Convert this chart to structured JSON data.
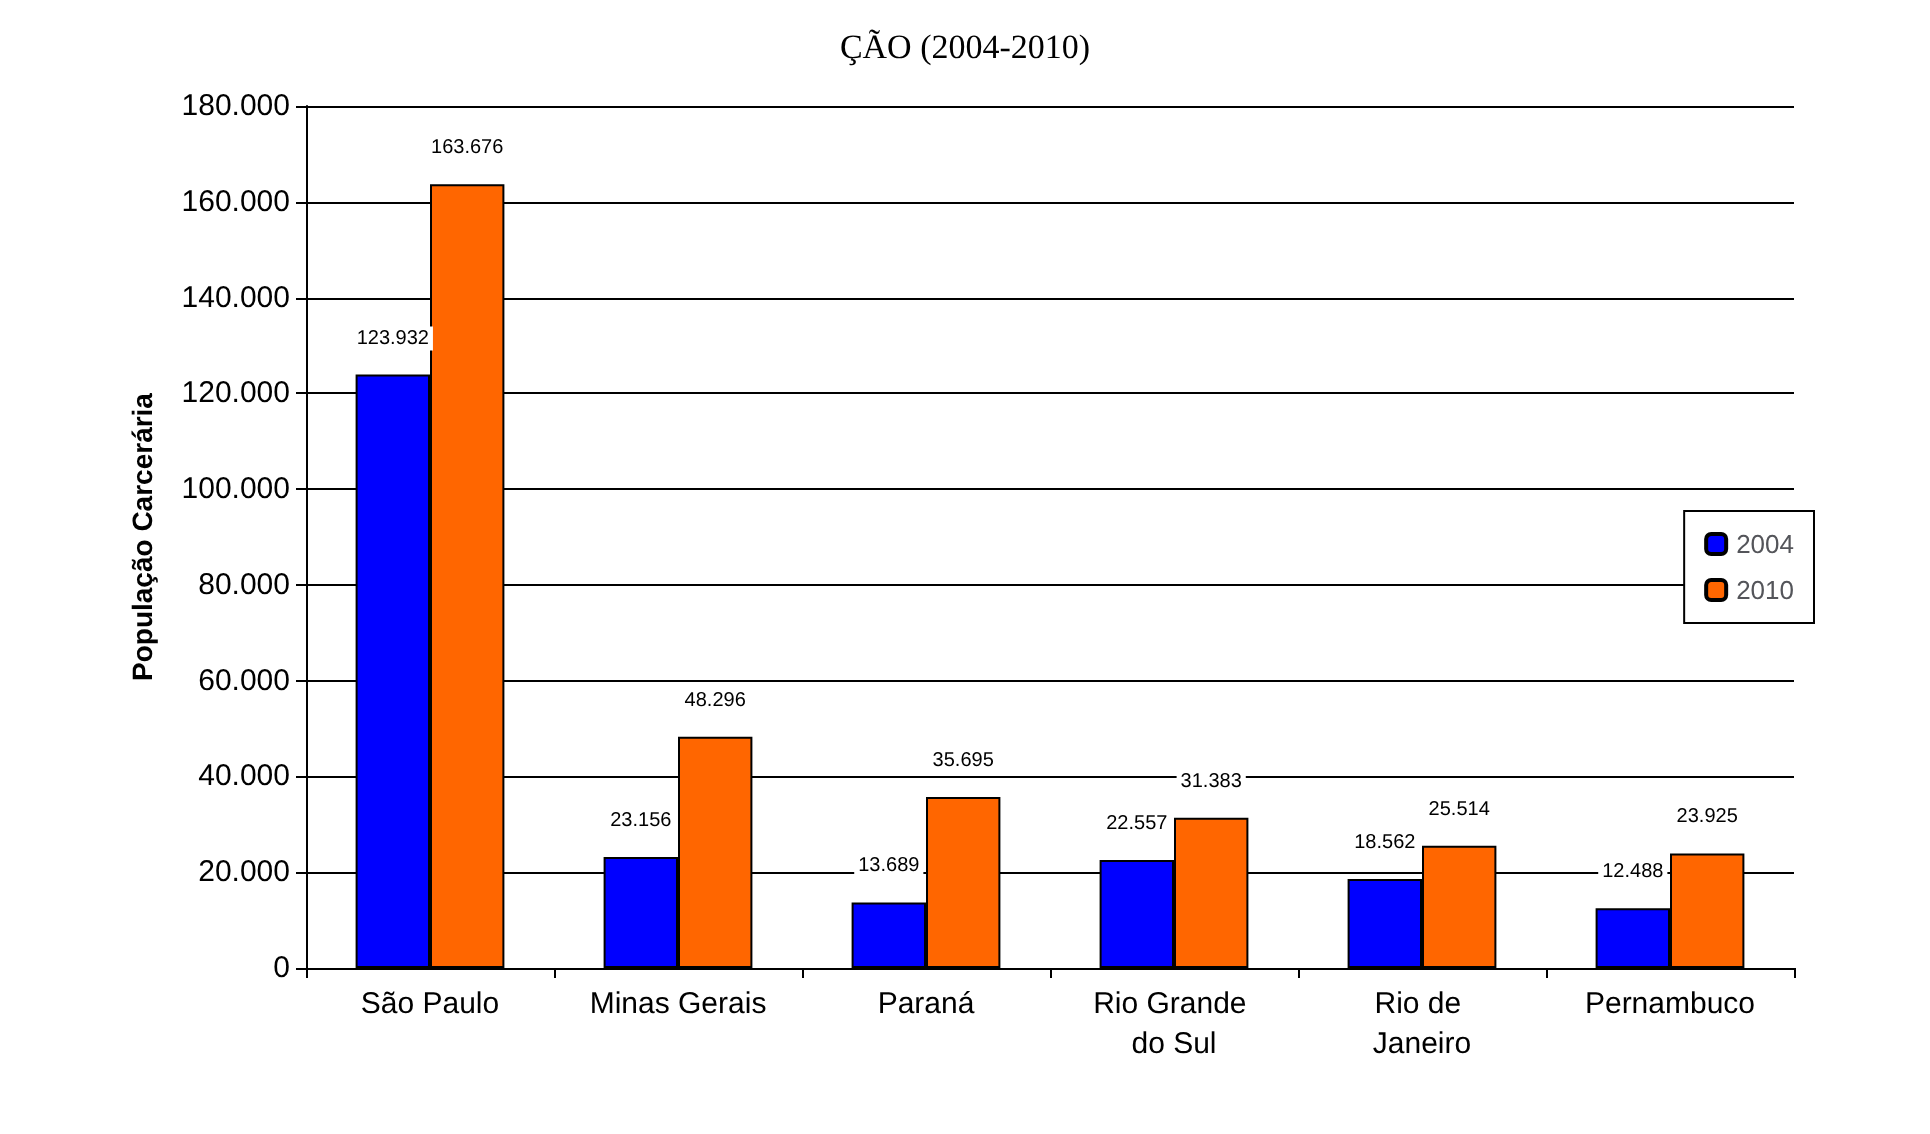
{
  "chart_data": {
    "type": "bar",
    "title": "ÇÃO (2004-2010)",
    "ylabel": "População Carcerária",
    "categories": [
      "São Paulo",
      "Minas Gerais",
      "Paraná",
      "Rio Grande do Sul",
      "Rio de Janeiro",
      "Pernambuco"
    ],
    "series": [
      {
        "name": "2004",
        "color": "#0000ff",
        "values": [
          123932,
          23156,
          13689,
          22557,
          18562,
          12488
        ],
        "value_labels": [
          "123.932",
          "23.156",
          "13.689",
          "22.557",
          "18.562",
          "12.488"
        ]
      },
      {
        "name": "2010",
        "color": "#ff6600",
        "values": [
          163676,
          48296,
          35695,
          31383,
          25514,
          23925
        ],
        "value_labels": [
          "163.676",
          "48.296",
          "35.695",
          "31.383",
          "25.514",
          "23.925"
        ]
      }
    ],
    "ylim": [
      0,
      180000
    ],
    "yticks": [
      {
        "value": 0,
        "label": "0"
      },
      {
        "value": 20000,
        "label": "20.000"
      },
      {
        "value": 40000,
        "label": "40.000"
      },
      {
        "value": 60000,
        "label": "60.000"
      },
      {
        "value": 80000,
        "label": "80.000"
      },
      {
        "value": 100000,
        "label": "100.000"
      },
      {
        "value": 120000,
        "label": "120.000"
      },
      {
        "value": 140000,
        "label": "140.000"
      },
      {
        "value": 160000,
        "label": "160.000"
      },
      {
        "value": 180000,
        "label": "180.000"
      }
    ],
    "grid": "y",
    "legend": "right"
  }
}
